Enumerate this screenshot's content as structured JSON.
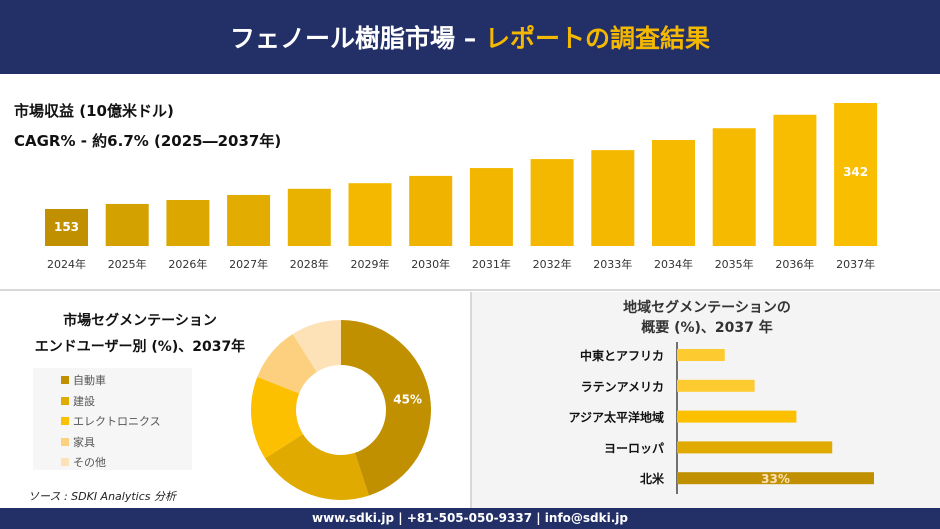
{
  "header": {
    "title_white": "フェノール樹脂市場 –",
    "title_yellow": "レポートの調査結果"
  },
  "colors": {
    "navy": "#233068",
    "accent": "#f5b800"
  },
  "top": {
    "title": "市場収益 (10億米ドル)",
    "cagr": "CAGR% - 約6.7% (2025―2037年)"
  },
  "chart_data": [
    {
      "type": "bar",
      "categories": [
        "2024年",
        "2025年",
        "2026年",
        "2027年",
        "2028年",
        "2029年",
        "2030年",
        "2031年",
        "2032年",
        "2033年",
        "2034年",
        "2035年",
        "2036年",
        "2037年"
      ],
      "values": [
        153,
        162,
        169,
        178,
        189,
        199,
        212,
        226,
        242,
        258,
        276,
        297,
        321,
        342
      ],
      "data_labels": {
        "2024年": "153",
        "2037年": "342"
      },
      "ylim": [
        87,
        342
      ],
      "grid": false
    },
    {
      "type": "pie",
      "title_line1": "市場セグメンテーション",
      "title_line2": "エンドユーザー別 (%)、2037年",
      "categories": [
        "自動車",
        "建設",
        "エレクトロニクス",
        "家具",
        "その他"
      ],
      "values": [
        45,
        21,
        15,
        10,
        9
      ],
      "colors": [
        "#c09000",
        "#e0aa00",
        "#fcc000",
        "#fdd080",
        "#fde2b8"
      ],
      "data_labels": [
        "45%"
      ],
      "legend": "left"
    },
    {
      "type": "bar",
      "orientation": "horizontal",
      "title_line1": "地域セグメンテーションの",
      "title_line2": "概要 (%)、2037 年",
      "categories": [
        "中東とアフリカ",
        "ラテンアメリカ",
        "アジア太平洋地域",
        "ヨーロッパ",
        "北米"
      ],
      "values": [
        8,
        13,
        20,
        26,
        33
      ],
      "colors": [
        "#fdca30",
        "#fdca30",
        "#fcc000",
        "#e0aa00",
        "#c09000"
      ],
      "data_labels": [
        "",
        "",
        "",
        "",
        "33%"
      ]
    }
  ],
  "source": "ソース : SDKI Analytics 分析",
  "footer": "www.sdki.jp | +81-505-050-9337 | info@sdki.jp"
}
